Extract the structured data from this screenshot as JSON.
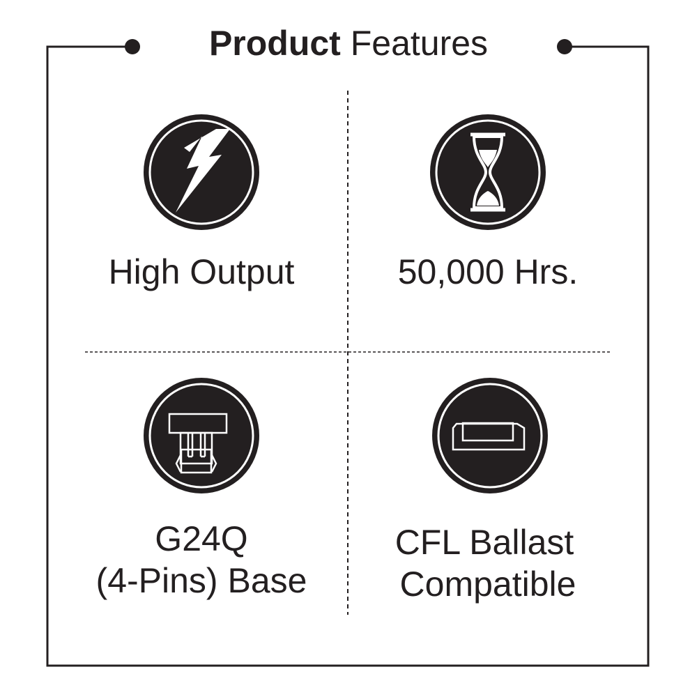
{
  "title": {
    "bold": "Product",
    "regular": " Features"
  },
  "features": [
    {
      "icon": "lightning-bolt-icon",
      "lines": [
        "High Output"
      ]
    },
    {
      "icon": "hourglass-icon",
      "lines": [
        "50,000 Hrs."
      ]
    },
    {
      "icon": "g24q-base-icon",
      "lines": [
        "G24Q",
        "(4-Pins) Base"
      ]
    },
    {
      "icon": "ballast-icon",
      "lines": [
        "CFL Ballast",
        "Compatible"
      ]
    }
  ],
  "colors": {
    "ink": "#231f20",
    "background": "#ffffff"
  }
}
